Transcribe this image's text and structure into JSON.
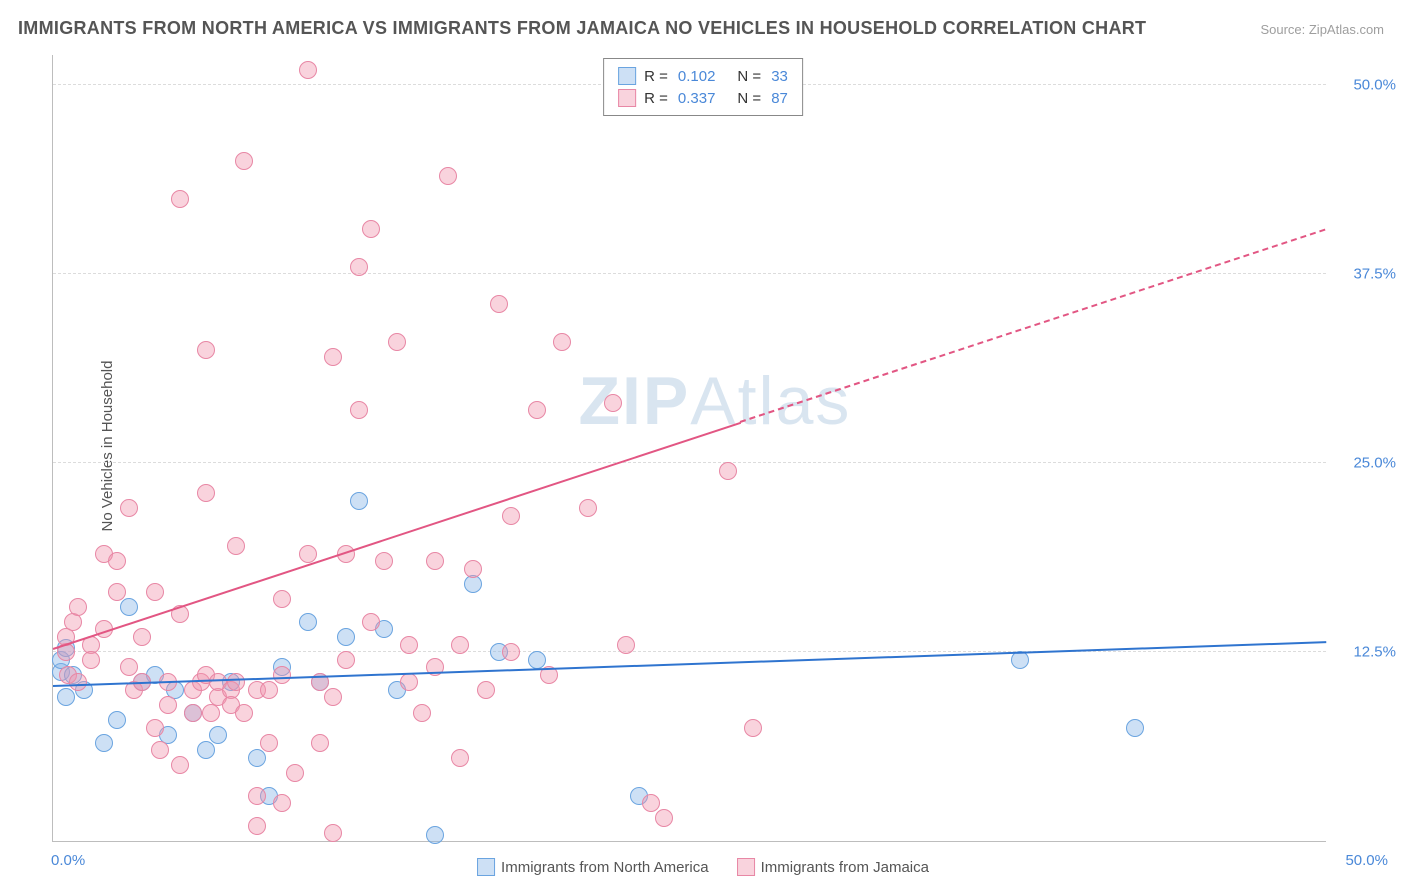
{
  "title": "IMMIGRANTS FROM NORTH AMERICA VS IMMIGRANTS FROM JAMAICA NO VEHICLES IN HOUSEHOLD CORRELATION CHART",
  "source": "Source: ZipAtlas.com",
  "ylabel": "No Vehicles in Household",
  "watermark_bold": "ZIP",
  "watermark_rest": "Atlas",
  "chart": {
    "type": "scatter",
    "background_color": "#ffffff",
    "grid_color": "#dcdcdc",
    "axis_color": "#bdbdbd",
    "tick_label_color": "#4a88d8",
    "xlim": [
      0,
      50
    ],
    "ylim": [
      0,
      52
    ],
    "xticks": [
      {
        "v": 0,
        "label": "0.0%"
      },
      {
        "v": 50,
        "label": "50.0%"
      }
    ],
    "yticks": [
      {
        "v": 12.5,
        "label": "12.5%"
      },
      {
        "v": 25.0,
        "label": "25.0%"
      },
      {
        "v": 37.5,
        "label": "37.5%"
      },
      {
        "v": 50.0,
        "label": "50.0%"
      }
    ],
    "marker_radius": 9,
    "marker_stroke_width": 1.5
  },
  "series": [
    {
      "id": "na",
      "label": "Immigrants from North America",
      "fill": "rgba(135, 180, 230, 0.42)",
      "stroke": "#6aa4e0",
      "R": "0.102",
      "N": "33",
      "trend": {
        "y0": 10.3,
        "y1": 13.2,
        "color": "#2f74cf",
        "dashed_from": 50
      },
      "points": [
        [
          0.3,
          11.2
        ],
        [
          0.3,
          12.0
        ],
        [
          0.5,
          12.8
        ],
        [
          0.5,
          9.5
        ],
        [
          0.8,
          11.0
        ],
        [
          1.2,
          10.0
        ],
        [
          6.0,
          6.0
        ],
        [
          4.5,
          7.0
        ],
        [
          3.0,
          15.5
        ],
        [
          2.0,
          6.5
        ],
        [
          2.5,
          8.0
        ],
        [
          3.5,
          10.5
        ],
        [
          4.0,
          11.0
        ],
        [
          4.8,
          10.0
        ],
        [
          5.5,
          8.5
        ],
        [
          6.5,
          7.0
        ],
        [
          7.0,
          10.5
        ],
        [
          8.0,
          5.5
        ],
        [
          8.5,
          3.0
        ],
        [
          9.0,
          11.5
        ],
        [
          10.0,
          14.5
        ],
        [
          10.5,
          10.5
        ],
        [
          11.5,
          13.5
        ],
        [
          12.0,
          22.5
        ],
        [
          13.0,
          14.0
        ],
        [
          13.5,
          10.0
        ],
        [
          15.0,
          0.4
        ],
        [
          16.5,
          17.0
        ],
        [
          17.5,
          12.5
        ],
        [
          19.0,
          12.0
        ],
        [
          23.0,
          3.0
        ],
        [
          38.0,
          12.0
        ],
        [
          42.5,
          7.5
        ]
      ]
    },
    {
      "id": "jm",
      "label": "Immigrants from Jamaica",
      "fill": "rgba(240, 150, 175, 0.42)",
      "stroke": "#e887a5",
      "R": "0.337",
      "N": "87",
      "trend": {
        "y0": 12.8,
        "y1": 40.5,
        "color": "#e25683",
        "dashed_from": 27
      },
      "points": [
        [
          0.5,
          12.5
        ],
        [
          0.5,
          13.5
        ],
        [
          0.6,
          11.0
        ],
        [
          0.8,
          14.5
        ],
        [
          1.0,
          15.5
        ],
        [
          1.0,
          10.5
        ],
        [
          1.5,
          13.0
        ],
        [
          1.5,
          12.0
        ],
        [
          2.0,
          19.0
        ],
        [
          2.0,
          14.0
        ],
        [
          2.5,
          18.5
        ],
        [
          2.5,
          16.5
        ],
        [
          3.0,
          22.0
        ],
        [
          3.0,
          11.5
        ],
        [
          3.2,
          10.0
        ],
        [
          3.5,
          13.5
        ],
        [
          3.5,
          10.5
        ],
        [
          4.0,
          16.5
        ],
        [
          4.0,
          7.5
        ],
        [
          4.2,
          6.0
        ],
        [
          4.5,
          9.0
        ],
        [
          4.5,
          10.5
        ],
        [
          5.0,
          42.5
        ],
        [
          5.0,
          15.0
        ],
        [
          5.0,
          5.0
        ],
        [
          5.5,
          8.5
        ],
        [
          5.5,
          10.0
        ],
        [
          5.8,
          10.5
        ],
        [
          6.0,
          23.0
        ],
        [
          6.0,
          11.0
        ],
        [
          6.0,
          32.5
        ],
        [
          6.2,
          8.5
        ],
        [
          6.5,
          9.5
        ],
        [
          6.5,
          10.5
        ],
        [
          7.0,
          10.0
        ],
        [
          7.0,
          9.0
        ],
        [
          7.2,
          19.5
        ],
        [
          7.2,
          10.5
        ],
        [
          7.5,
          45.0
        ],
        [
          7.5,
          8.5
        ],
        [
          8.0,
          3.0
        ],
        [
          8.0,
          10.0
        ],
        [
          8.0,
          1.0
        ],
        [
          8.5,
          10.0
        ],
        [
          8.5,
          6.5
        ],
        [
          9.0,
          16.0
        ],
        [
          9.0,
          11.0
        ],
        [
          9.0,
          2.5
        ],
        [
          9.5,
          4.5
        ],
        [
          10.0,
          19.0
        ],
        [
          10.0,
          51.0
        ],
        [
          10.5,
          10.5
        ],
        [
          10.5,
          6.5
        ],
        [
          11.0,
          9.5
        ],
        [
          11.0,
          32.0
        ],
        [
          11.0,
          0.5
        ],
        [
          11.5,
          19.0
        ],
        [
          11.5,
          12.0
        ],
        [
          12.0,
          38.0
        ],
        [
          12.0,
          28.5
        ],
        [
          12.5,
          14.5
        ],
        [
          12.5,
          40.5
        ],
        [
          13.0,
          18.5
        ],
        [
          13.5,
          33.0
        ],
        [
          14.0,
          13.0
        ],
        [
          14.0,
          10.5
        ],
        [
          14.5,
          8.5
        ],
        [
          15.0,
          18.5
        ],
        [
          15.0,
          11.5
        ],
        [
          15.5,
          44.0
        ],
        [
          16.0,
          5.5
        ],
        [
          16.0,
          13.0
        ],
        [
          16.5,
          18.0
        ],
        [
          17.0,
          10.0
        ],
        [
          17.5,
          35.5
        ],
        [
          18.0,
          12.5
        ],
        [
          18.0,
          21.5
        ],
        [
          19.0,
          28.5
        ],
        [
          19.5,
          11.0
        ],
        [
          20.0,
          33.0
        ],
        [
          21.0,
          22.0
        ],
        [
          22.0,
          29.0
        ],
        [
          22.5,
          13.0
        ],
        [
          23.5,
          2.5
        ],
        [
          24.0,
          1.5
        ],
        [
          26.5,
          24.5
        ],
        [
          27.5,
          7.5
        ]
      ]
    }
  ]
}
